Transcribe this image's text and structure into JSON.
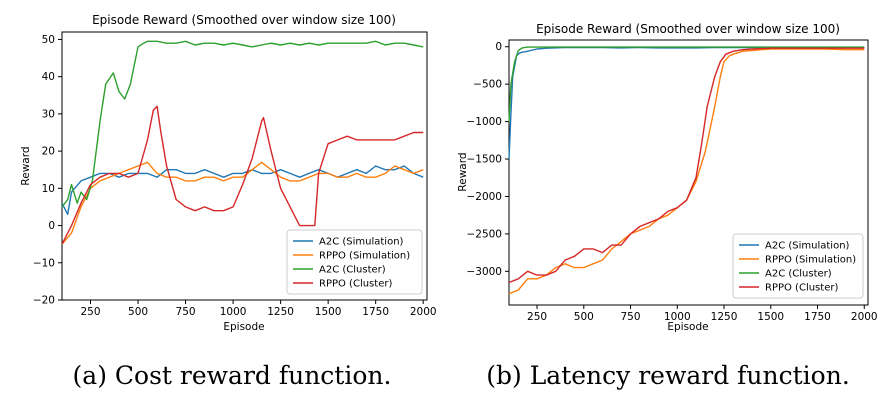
{
  "chart_data": [
    {
      "type": "line",
      "title": "Episode Reward (Smoothed over window size 100)",
      "xlabel": "Episode",
      "ylabel": "Reward",
      "caption": "(a) Cost reward function.",
      "xlim": [
        100,
        2020
      ],
      "ylim": [
        -20,
        52
      ],
      "xticks": [
        250,
        500,
        750,
        1000,
        1250,
        1500,
        1750,
        2000
      ],
      "yticks": [
        -20,
        -10,
        0,
        10,
        20,
        30,
        40,
        50
      ],
      "grid": false,
      "legend": "lower-right",
      "series": [
        {
          "name": "A2C (Simulation)",
          "color": "#1f77b4",
          "x": [
            100,
            130,
            150,
            200,
            250,
            300,
            350,
            400,
            450,
            500,
            550,
            600,
            650,
            700,
            750,
            800,
            850,
            900,
            950,
            1000,
            1050,
            1100,
            1150,
            1200,
            1250,
            1300,
            1350,
            1400,
            1450,
            1500,
            1550,
            1600,
            1650,
            1700,
            1750,
            1800,
            1850,
            1900,
            1950,
            2000
          ],
          "y": [
            6,
            3,
            9,
            12,
            13,
            14,
            14,
            13,
            14,
            14,
            14,
            13,
            15,
            15,
            14,
            14,
            15,
            14,
            13,
            14,
            14,
            15,
            14,
            14,
            15,
            14,
            13,
            14,
            15,
            14,
            13,
            14,
            15,
            14,
            16,
            15,
            15,
            16,
            14,
            13
          ]
        },
        {
          "name": "RPPO (Simulation)",
          "color": "#ff7f0e",
          "x": [
            100,
            150,
            200,
            250,
            300,
            350,
            400,
            450,
            500,
            550,
            600,
            650,
            700,
            750,
            800,
            850,
            900,
            950,
            1000,
            1050,
            1100,
            1150,
            1200,
            1250,
            1300,
            1350,
            1400,
            1450,
            1500,
            1550,
            1600,
            1650,
            1700,
            1750,
            1800,
            1850,
            1900,
            1950,
            2000
          ],
          "y": [
            -5,
            -2,
            5,
            10,
            12,
            13,
            14,
            15,
            16,
            17,
            14,
            13,
            13,
            12,
            12,
            13,
            13,
            12,
            13,
            13,
            15,
            17,
            15,
            13,
            12,
            12,
            13,
            14,
            14,
            13,
            13,
            14,
            13,
            13,
            14,
            16,
            15,
            14,
            15
          ]
        },
        {
          "name": "A2C (Cluster)",
          "color": "#2ca02c",
          "x": [
            100,
            130,
            150,
            180,
            200,
            230,
            260,
            300,
            330,
            370,
            400,
            430,
            460,
            500,
            530,
            550,
            600,
            650,
            700,
            750,
            800,
            850,
            900,
            950,
            1000,
            1050,
            1100,
            1150,
            1200,
            1250,
            1300,
            1350,
            1400,
            1450,
            1500,
            1550,
            1600,
            1650,
            1700,
            1750,
            1800,
            1850,
            1900,
            1950,
            2000
          ],
          "y": [
            5,
            7,
            11,
            6,
            9,
            7,
            12,
            28,
            38,
            41,
            36,
            34,
            38,
            48,
            49,
            49.5,
            49.5,
            49,
            49,
            49.5,
            48.5,
            49,
            49,
            48.5,
            49,
            48.5,
            48,
            48.5,
            49,
            48.5,
            49,
            48.5,
            49,
            48.5,
            49,
            49,
            49,
            49,
            49,
            49.5,
            48.5,
            49,
            49,
            48.5,
            48
          ]
        },
        {
          "name": "RPPO (Cluster)",
          "color": "#d62728",
          "x": [
            100,
            150,
            200,
            250,
            300,
            350,
            400,
            450,
            500,
            550,
            580,
            600,
            620,
            650,
            700,
            750,
            800,
            850,
            900,
            950,
            1000,
            1050,
            1100,
            1150,
            1160,
            1200,
            1250,
            1300,
            1350,
            1400,
            1430,
            1450,
            1500,
            1550,
            1600,
            1650,
            1700,
            1750,
            1800,
            1850,
            1900,
            1950,
            2000
          ],
          "y": [
            -5,
            0,
            6,
            11,
            13,
            14,
            14,
            13,
            14,
            23,
            31,
            32,
            25,
            16,
            7,
            5,
            4,
            5,
            4,
            4,
            5,
            11,
            18,
            28,
            29,
            20,
            10,
            5,
            0,
            0,
            0,
            14,
            22,
            23,
            24,
            23,
            23,
            23,
            23,
            23,
            24,
            25,
            25
          ]
        }
      ]
    },
    {
      "type": "line",
      "title": "Episode Reward (Smoothed over window size 100)",
      "xlabel": "Episode",
      "ylabel": "Reward",
      "caption": "(b) Latency reward function.",
      "xlim": [
        100,
        2020
      ],
      "ylim": [
        -3450,
        90
      ],
      "xticks": [
        250,
        500,
        750,
        1000,
        1250,
        1500,
        1750,
        2000
      ],
      "yticks": [
        0,
        -500,
        -1000,
        -1500,
        -2000,
        -2500,
        -3000
      ],
      "grid": false,
      "legend": "lower-right",
      "series": [
        {
          "name": "A2C (Simulation)",
          "color": "#1f77b4",
          "x": [
            100,
            110,
            120,
            140,
            160,
            200,
            250,
            300,
            400,
            500,
            600,
            700,
            800,
            900,
            1000,
            1100,
            1200,
            1300,
            1400,
            1500,
            1600,
            1700,
            1800,
            1900,
            2000
          ],
          "y": [
            -1500,
            -900,
            -400,
            -120,
            -80,
            -60,
            -30,
            -20,
            -10,
            -10,
            -10,
            -15,
            -10,
            -15,
            -15,
            -15,
            -10,
            -10,
            -10,
            -10,
            -10,
            -10,
            -10,
            -10,
            -10
          ]
        },
        {
          "name": "RPPO (Simulation)",
          "color": "#ff7f0e",
          "x": [
            100,
            150,
            200,
            250,
            300,
            350,
            400,
            450,
            500,
            550,
            600,
            650,
            700,
            750,
            800,
            850,
            900,
            950,
            1000,
            1050,
            1100,
            1150,
            1200,
            1230,
            1250,
            1280,
            1300,
            1350,
            1400,
            1450,
            1500,
            1600,
            1700,
            1800,
            1900,
            2000
          ],
          "y": [
            -3300,
            -3250,
            -3100,
            -3100,
            -3050,
            -2950,
            -2900,
            -2950,
            -2950,
            -2900,
            -2850,
            -2700,
            -2600,
            -2500,
            -2450,
            -2400,
            -2300,
            -2250,
            -2150,
            -2050,
            -1800,
            -1400,
            -800,
            -400,
            -200,
            -120,
            -100,
            -60,
            -50,
            -40,
            -30,
            -30,
            -30,
            -30,
            -40,
            -40
          ]
        },
        {
          "name": "A2C (Cluster)",
          "color": "#2ca02c",
          "x": [
            100,
            110,
            130,
            150,
            170,
            200,
            250,
            300,
            400,
            500,
            600,
            700,
            800,
            900,
            1000,
            1100,
            1200,
            1300,
            1400,
            1500,
            1600,
            1700,
            1800,
            1900,
            2000
          ],
          "y": [
            -1000,
            -500,
            -200,
            -50,
            -15,
            -5,
            -5,
            -5,
            -5,
            -5,
            -5,
            -5,
            -5,
            -5,
            -5,
            -5,
            -5,
            -5,
            -5,
            -5,
            -5,
            -5,
            -5,
            -5,
            -5
          ]
        },
        {
          "name": "RPPO (Cluster)",
          "color": "#d62728",
          "x": [
            100,
            150,
            200,
            250,
            300,
            350,
            400,
            450,
            500,
            550,
            600,
            650,
            700,
            750,
            800,
            850,
            900,
            950,
            1000,
            1050,
            1100,
            1130,
            1160,
            1200,
            1230,
            1260,
            1300,
            1350,
            1400,
            1500,
            1600,
            1700,
            1800,
            1900,
            2000
          ],
          "y": [
            -3150,
            -3100,
            -3000,
            -3050,
            -3050,
            -3000,
            -2850,
            -2800,
            -2700,
            -2700,
            -2750,
            -2650,
            -2650,
            -2500,
            -2400,
            -2350,
            -2300,
            -2200,
            -2150,
            -2050,
            -1750,
            -1300,
            -800,
            -400,
            -200,
            -100,
            -60,
            -40,
            -30,
            -20,
            -20,
            -20,
            -20,
            -20,
            -20
          ]
        }
      ]
    }
  ]
}
